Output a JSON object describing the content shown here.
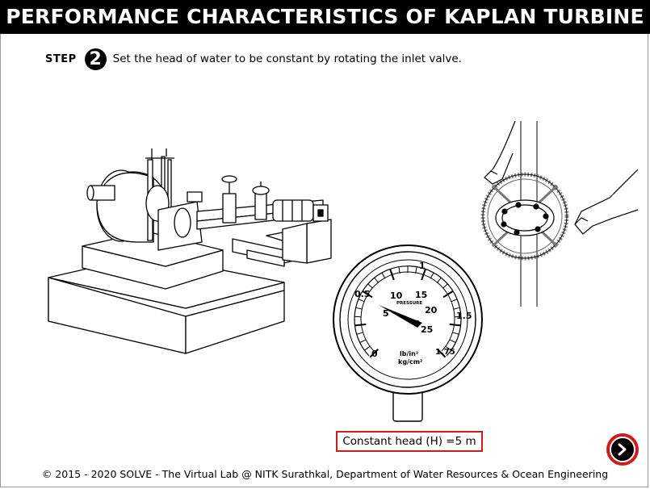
{
  "title": "PERFORMANCE CHARACTERISTICS OF KAPLAN TURBINE",
  "step": {
    "label": "STEP",
    "number": "2",
    "instruction": "Set the head of water to be constant by rotating the inlet valve."
  },
  "gauge": {
    "outer_labels": [
      "0",
      "0.5",
      "1",
      "1.5",
      "1.75"
    ],
    "inner_labels": [
      "5",
      "10",
      "15",
      "20",
      "25"
    ],
    "center_label": "PRESSURE",
    "unit_imperial": "lb/in²",
    "unit_metric": "kg/cm²"
  },
  "readout": "Constant head (H) =5 m",
  "next_icon": "arrow-right-icon",
  "footer": "© 2015 - 2020 SOLVE - The Virtual Lab @ NITK Surathkal, Department of Water Resources & Ocean Engineering",
  "colors": {
    "accent": "#d11a1a",
    "title_bg": "#000000"
  }
}
